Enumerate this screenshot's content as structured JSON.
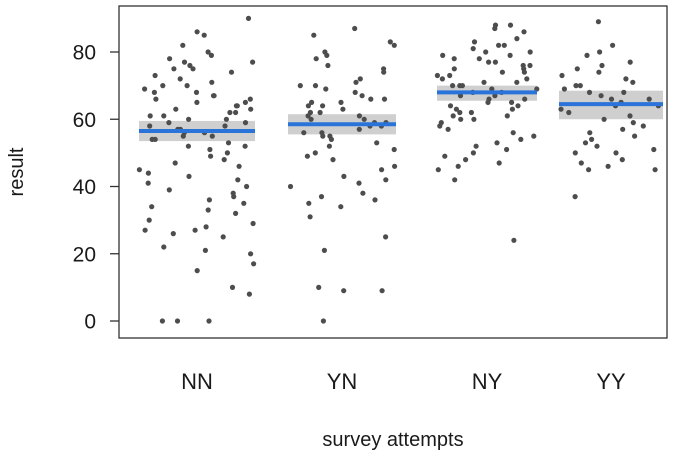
{
  "chart_data": {
    "type": "scatter",
    "xlabel": "survey attempts",
    "ylabel": "result",
    "categories": [
      "NN",
      "YN",
      "NY",
      "YY"
    ],
    "ylim": [
      -5,
      95
    ],
    "y_ticks": [
      0,
      20,
      40,
      60,
      80
    ],
    "grid": false,
    "legend": "none",
    "colors": {
      "points": "#4d4d4d",
      "mean_line": "#2a73d9",
      "confidence_band": "#bfbfbf"
    },
    "group_means": [
      {
        "category": "NN",
        "mean": 56.5,
        "ci_low": 53.5,
        "ci_high": 59.5
      },
      {
        "category": "YN",
        "mean": 58.5,
        "ci_low": 55.5,
        "ci_high": 61.5
      },
      {
        "category": "NY",
        "mean": 68,
        "ci_low": 65.5,
        "ci_high": 70
      },
      {
        "category": "YY",
        "mean": 64.5,
        "ci_low": 60,
        "ci_high": 68.5
      }
    ],
    "points": {
      "NN": [
        90,
        86,
        85,
        82,
        80,
        79,
        78,
        77,
        77,
        76,
        75,
        75,
        74,
        73,
        72,
        71,
        70,
        70,
        69,
        68,
        68,
        67,
        67,
        66,
        66,
        65,
        65,
        64,
        64,
        63,
        63,
        62,
        62,
        61,
        61,
        60,
        60,
        59,
        59,
        58,
        58,
        57,
        57,
        56,
        56,
        55,
        55,
        54,
        54,
        53,
        52,
        52,
        51,
        50,
        49,
        48,
        47,
        46,
        45,
        44,
        43,
        42,
        41,
        40,
        39,
        38,
        37,
        36,
        35,
        34,
        33,
        32,
        30,
        29,
        28,
        27,
        27,
        26,
        25,
        22,
        21,
        20,
        17,
        15,
        10,
        8,
        0,
        0,
        0
      ],
      "YN": [
        87,
        85,
        83,
        82,
        80,
        79,
        78,
        76,
        75,
        74,
        72,
        71,
        70,
        70,
        69,
        68,
        67,
        66,
        66,
        65,
        65,
        64,
        64,
        63,
        62,
        62,
        61,
        61,
        60,
        60,
        59,
        59,
        58,
        58,
        57,
        56,
        56,
        55,
        55,
        54,
        53,
        52,
        51,
        50,
        49,
        48,
        46,
        45,
        43,
        42,
        41,
        40,
        38,
        37,
        36,
        35,
        34,
        31,
        25,
        21,
        10,
        9,
        9,
        0
      ],
      "NY": [
        88,
        88,
        87,
        86,
        84,
        83,
        82,
        82,
        81,
        80,
        80,
        79,
        79,
        78,
        78,
        77,
        77,
        76,
        76,
        75,
        75,
        74,
        74,
        73,
        73,
        72,
        72,
        71,
        71,
        70,
        70,
        70,
        69,
        69,
        68,
        68,
        67,
        67,
        66,
        66,
        65,
        65,
        64,
        64,
        63,
        63,
        62,
        62,
        61,
        61,
        60,
        60,
        59,
        58,
        57,
        56,
        55,
        54,
        53,
        52,
        51,
        50,
        49,
        48,
        47,
        46,
        45,
        42,
        24
      ],
      "YY": [
        89,
        82,
        80,
        79,
        77,
        76,
        75,
        74,
        73,
        72,
        71,
        70,
        70,
        69,
        68,
        68,
        67,
        66,
        66,
        65,
        64,
        64,
        63,
        62,
        61,
        60,
        59,
        58,
        57,
        56,
        55,
        54,
        53,
        52,
        51,
        50,
        50,
        48,
        47,
        46,
        45,
        45,
        37
      ]
    }
  }
}
